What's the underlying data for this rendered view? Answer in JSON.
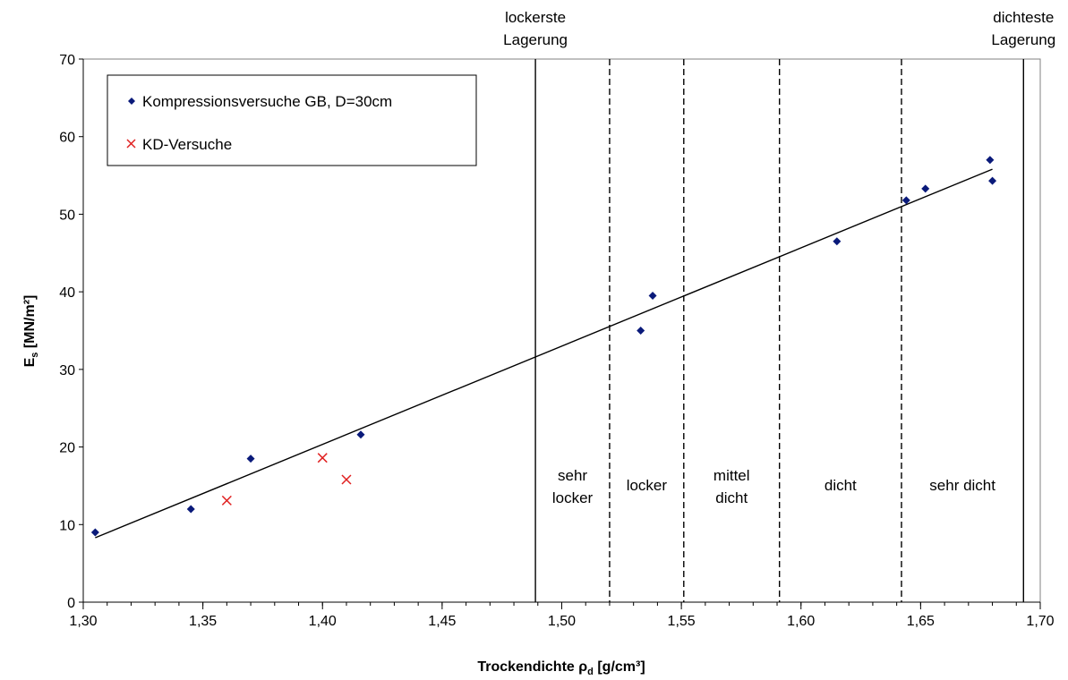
{
  "chart_data": {
    "type": "scatter",
    "xlabel_main": "Trockendichte ρ",
    "xlabel_sub": "d",
    "xlabel_unit": " [g/cm³]",
    "ylabel_main": "E",
    "ylabel_sub": "s",
    "ylabel_unit": " [MN/m²]",
    "xlim": [
      1.3,
      1.7
    ],
    "ylim": [
      0,
      70
    ],
    "x_ticks": [
      "1,30",
      "1,35",
      "1,40",
      "1,45",
      "1,50",
      "1,55",
      "1,60",
      "1,65",
      "1,70"
    ],
    "y_ticks": [
      "0",
      "10",
      "20",
      "30",
      "40",
      "50",
      "60",
      "70"
    ],
    "grid": false,
    "legend_position": "top-left",
    "series": [
      {
        "name": "Kompressionsversuche GB, D=30cm",
        "marker": "diamond",
        "color": "#0a1a7a",
        "points": [
          [
            1.305,
            9.0
          ],
          [
            1.345,
            12.0
          ],
          [
            1.37,
            18.5
          ],
          [
            1.416,
            21.6
          ],
          [
            1.533,
            35.0
          ],
          [
            1.538,
            39.5
          ],
          [
            1.615,
            46.5
          ],
          [
            1.644,
            51.8
          ],
          [
            1.652,
            53.3
          ],
          [
            1.679,
            57.0
          ],
          [
            1.68,
            54.3
          ]
        ]
      },
      {
        "name": "KD-Versuche",
        "marker": "x",
        "color": "#e02020",
        "points": [
          [
            1.36,
            13.1
          ],
          [
            1.4,
            18.6
          ],
          [
            1.41,
            15.8
          ]
        ]
      }
    ],
    "trendline": {
      "from": [
        1.305,
        8.3
      ],
      "to": [
        1.68,
        55.8
      ]
    },
    "boundaries": [
      {
        "x": 1.489,
        "style": "solid",
        "label_lines": [
          "lockerste",
          "Lagerung"
        ]
      },
      {
        "x": 1.52,
        "style": "dashed"
      },
      {
        "x": 1.551,
        "style": "dashed"
      },
      {
        "x": 1.591,
        "style": "dashed"
      },
      {
        "x": 1.642,
        "style": "dashed"
      },
      {
        "x": 1.693,
        "style": "solid",
        "label_lines": [
          "dichteste",
          "Lagerung"
        ]
      }
    ],
    "zones": [
      {
        "from": 1.489,
        "to": 1.52,
        "lines": [
          "sehr",
          "locker"
        ]
      },
      {
        "from": 1.52,
        "to": 1.551,
        "lines": [
          "locker"
        ]
      },
      {
        "from": 1.551,
        "to": 1.591,
        "lines": [
          "mittel",
          "dicht"
        ]
      },
      {
        "from": 1.591,
        "to": 1.642,
        "lines": [
          "dicht"
        ]
      },
      {
        "from": 1.642,
        "to": 1.693,
        "lines": [
          "sehr dicht"
        ]
      }
    ]
  }
}
